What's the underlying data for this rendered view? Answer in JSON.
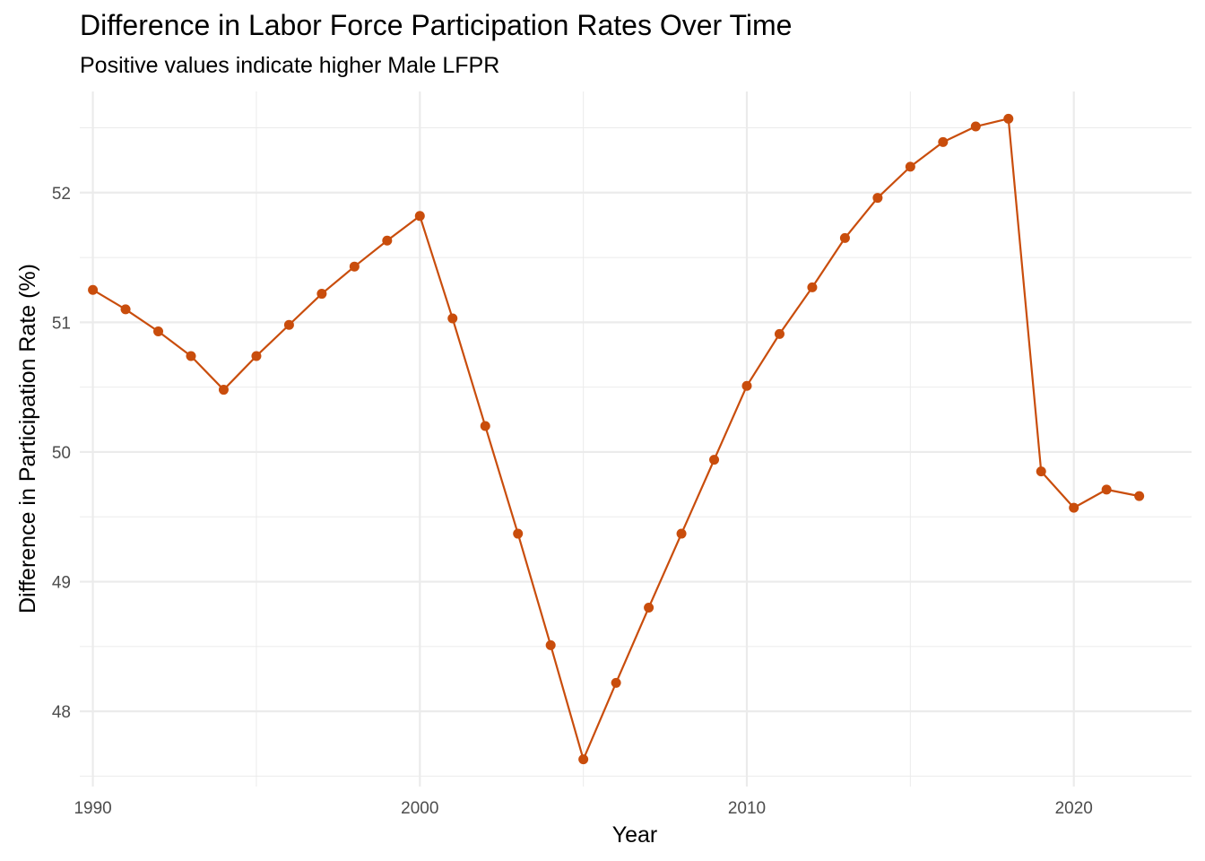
{
  "chart_data": {
    "type": "line",
    "title": "Difference in Labor Force Participation Rates Over Time",
    "subtitle": "Positive values indicate higher Male LFPR",
    "xlabel": "Year",
    "ylabel": "Difference in Participation Rate (%)",
    "x_ticks": [
      1990,
      2000,
      2010,
      2020
    ],
    "y_ticks": [
      48,
      49,
      50,
      51,
      52
    ],
    "xlim": [
      1989.6,
      2023.6
    ],
    "ylim": [
      47.42,
      52.78
    ],
    "grid": true,
    "legend": "none",
    "line_color": "#C94D0C",
    "grid_color": "#EBEBEB",
    "series": [
      {
        "x": [
          1990,
          1991,
          1992,
          1993,
          1994,
          1995,
          1996,
          1997,
          1998,
          1999,
          2000,
          2001,
          2002,
          2003,
          2004,
          2005,
          2006,
          2007,
          2008,
          2009,
          2010,
          2011,
          2012,
          2013,
          2014,
          2015,
          2016,
          2017,
          2018,
          2019,
          2020,
          2021,
          2022
        ],
        "values": [
          51.25,
          51.1,
          50.93,
          50.74,
          50.48,
          50.74,
          50.98,
          51.22,
          51.43,
          51.63,
          51.82,
          51.03,
          50.2,
          49.37,
          48.51,
          47.63,
          48.22,
          48.8,
          49.37,
          49.94,
          50.51,
          50.91,
          51.27,
          51.65,
          51.96,
          52.2,
          52.39,
          52.51,
          52.57,
          49.85,
          49.57,
          49.71,
          49.66
        ]
      }
    ]
  }
}
